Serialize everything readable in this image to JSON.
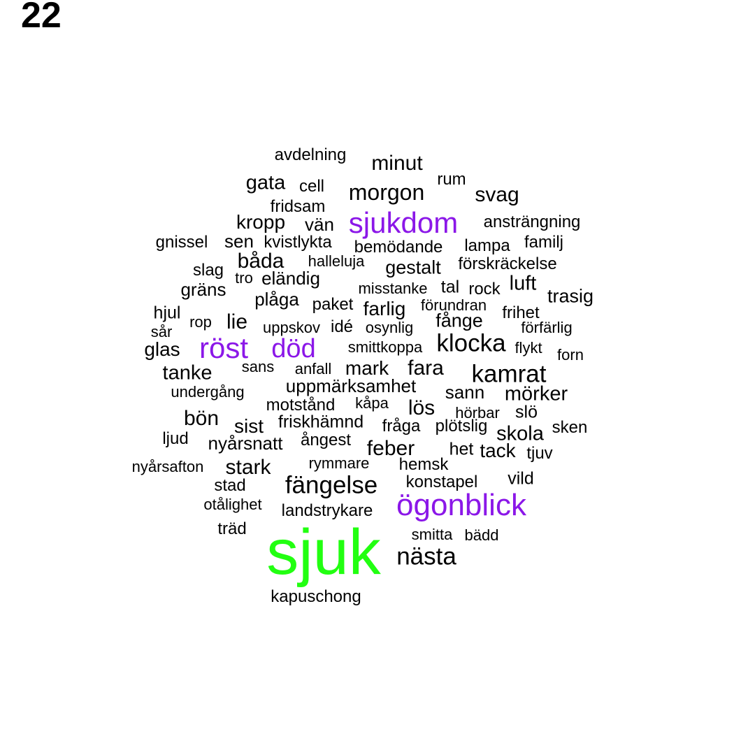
{
  "page_number": "22",
  "colors": {
    "default": "#000000",
    "purple": "#8B17E8",
    "green": "#22FF11"
  },
  "words": [
    {
      "text": "avdelning",
      "color": "default"
    },
    {
      "text": "minut",
      "color": "default"
    },
    {
      "text": "rum",
      "color": "default"
    },
    {
      "text": "gata",
      "color": "default"
    },
    {
      "text": "cell",
      "color": "default"
    },
    {
      "text": "morgon",
      "color": "default"
    },
    {
      "text": "svag",
      "color": "default"
    },
    {
      "text": "fridsam",
      "color": "default"
    },
    {
      "text": "kropp",
      "color": "default"
    },
    {
      "text": "vän",
      "color": "default"
    },
    {
      "text": "sjukdom",
      "color": "purple"
    },
    {
      "text": "ansträngning",
      "color": "default"
    },
    {
      "text": "gnissel",
      "color": "default"
    },
    {
      "text": "sen",
      "color": "default"
    },
    {
      "text": "kvistlykta",
      "color": "default"
    },
    {
      "text": "bemödande",
      "color": "default"
    },
    {
      "text": "lampa",
      "color": "default"
    },
    {
      "text": "familj",
      "color": "default"
    },
    {
      "text": "båda",
      "color": "default"
    },
    {
      "text": "halleluja",
      "color": "default"
    },
    {
      "text": "gestalt",
      "color": "default"
    },
    {
      "text": "förskräckelse",
      "color": "default"
    },
    {
      "text": "slag",
      "color": "default"
    },
    {
      "text": "tro",
      "color": "default"
    },
    {
      "text": "eländig",
      "color": "default"
    },
    {
      "text": "luft",
      "color": "default"
    },
    {
      "text": "gräns",
      "color": "default"
    },
    {
      "text": "misstanke",
      "color": "default"
    },
    {
      "text": "tal",
      "color": "default"
    },
    {
      "text": "rock",
      "color": "default"
    },
    {
      "text": "trasig",
      "color": "default"
    },
    {
      "text": "plåga",
      "color": "default"
    },
    {
      "text": "paket",
      "color": "default"
    },
    {
      "text": "farlig",
      "color": "default"
    },
    {
      "text": "förundran",
      "color": "default"
    },
    {
      "text": "hjul",
      "color": "default"
    },
    {
      "text": "frihet",
      "color": "default"
    },
    {
      "text": "rop",
      "color": "default"
    },
    {
      "text": "lie",
      "color": "default"
    },
    {
      "text": "fånge",
      "color": "default"
    },
    {
      "text": "sår",
      "color": "default"
    },
    {
      "text": "uppskov",
      "color": "default"
    },
    {
      "text": "idé",
      "color": "default"
    },
    {
      "text": "osynlig",
      "color": "default"
    },
    {
      "text": "förfärlig",
      "color": "default"
    },
    {
      "text": "glas",
      "color": "default"
    },
    {
      "text": "röst",
      "color": "purple"
    },
    {
      "text": "död",
      "color": "purple"
    },
    {
      "text": "smittkoppa",
      "color": "default"
    },
    {
      "text": "klocka",
      "color": "default"
    },
    {
      "text": "flykt",
      "color": "default"
    },
    {
      "text": "forn",
      "color": "default"
    },
    {
      "text": "tanke",
      "color": "default"
    },
    {
      "text": "sans",
      "color": "default"
    },
    {
      "text": "anfall",
      "color": "default"
    },
    {
      "text": "mark",
      "color": "default"
    },
    {
      "text": "fara",
      "color": "default"
    },
    {
      "text": "kamrat",
      "color": "default"
    },
    {
      "text": "undergång",
      "color": "default"
    },
    {
      "text": "uppmärksamhet",
      "color": "default"
    },
    {
      "text": "sann",
      "color": "default"
    },
    {
      "text": "mörker",
      "color": "default"
    },
    {
      "text": "motstånd",
      "color": "default"
    },
    {
      "text": "kåpa",
      "color": "default"
    },
    {
      "text": "lös",
      "color": "default"
    },
    {
      "text": "hörbar",
      "color": "default"
    },
    {
      "text": "slö",
      "color": "default"
    },
    {
      "text": "bön",
      "color": "default"
    },
    {
      "text": "sist",
      "color": "default"
    },
    {
      "text": "friskhämnd",
      "color": "default"
    },
    {
      "text": "fråga",
      "color": "default"
    },
    {
      "text": "plötslig",
      "color": "default"
    },
    {
      "text": "skola",
      "color": "default"
    },
    {
      "text": "sken",
      "color": "default"
    },
    {
      "text": "ljud",
      "color": "default"
    },
    {
      "text": "nyårsnatt",
      "color": "default"
    },
    {
      "text": "ångest",
      "color": "default"
    },
    {
      "text": "feber",
      "color": "default"
    },
    {
      "text": "het",
      "color": "default"
    },
    {
      "text": "tack",
      "color": "default"
    },
    {
      "text": "tjuv",
      "color": "default"
    },
    {
      "text": "nyårsafton",
      "color": "default"
    },
    {
      "text": "stark",
      "color": "default"
    },
    {
      "text": "rymmare",
      "color": "default"
    },
    {
      "text": "hemsk",
      "color": "default"
    },
    {
      "text": "stad",
      "color": "default"
    },
    {
      "text": "fängelse",
      "color": "default"
    },
    {
      "text": "konstapel",
      "color": "default"
    },
    {
      "text": "vild",
      "color": "default"
    },
    {
      "text": "otålighet",
      "color": "default"
    },
    {
      "text": "landstrykare",
      "color": "default"
    },
    {
      "text": "ögonblick",
      "color": "purple"
    },
    {
      "text": "träd",
      "color": "default"
    },
    {
      "text": "sjuk",
      "color": "green"
    },
    {
      "text": "smitta",
      "color": "default"
    },
    {
      "text": "bädd",
      "color": "default"
    },
    {
      "text": "nästa",
      "color": "default"
    },
    {
      "text": "kapuschong",
      "color": "default"
    }
  ]
}
